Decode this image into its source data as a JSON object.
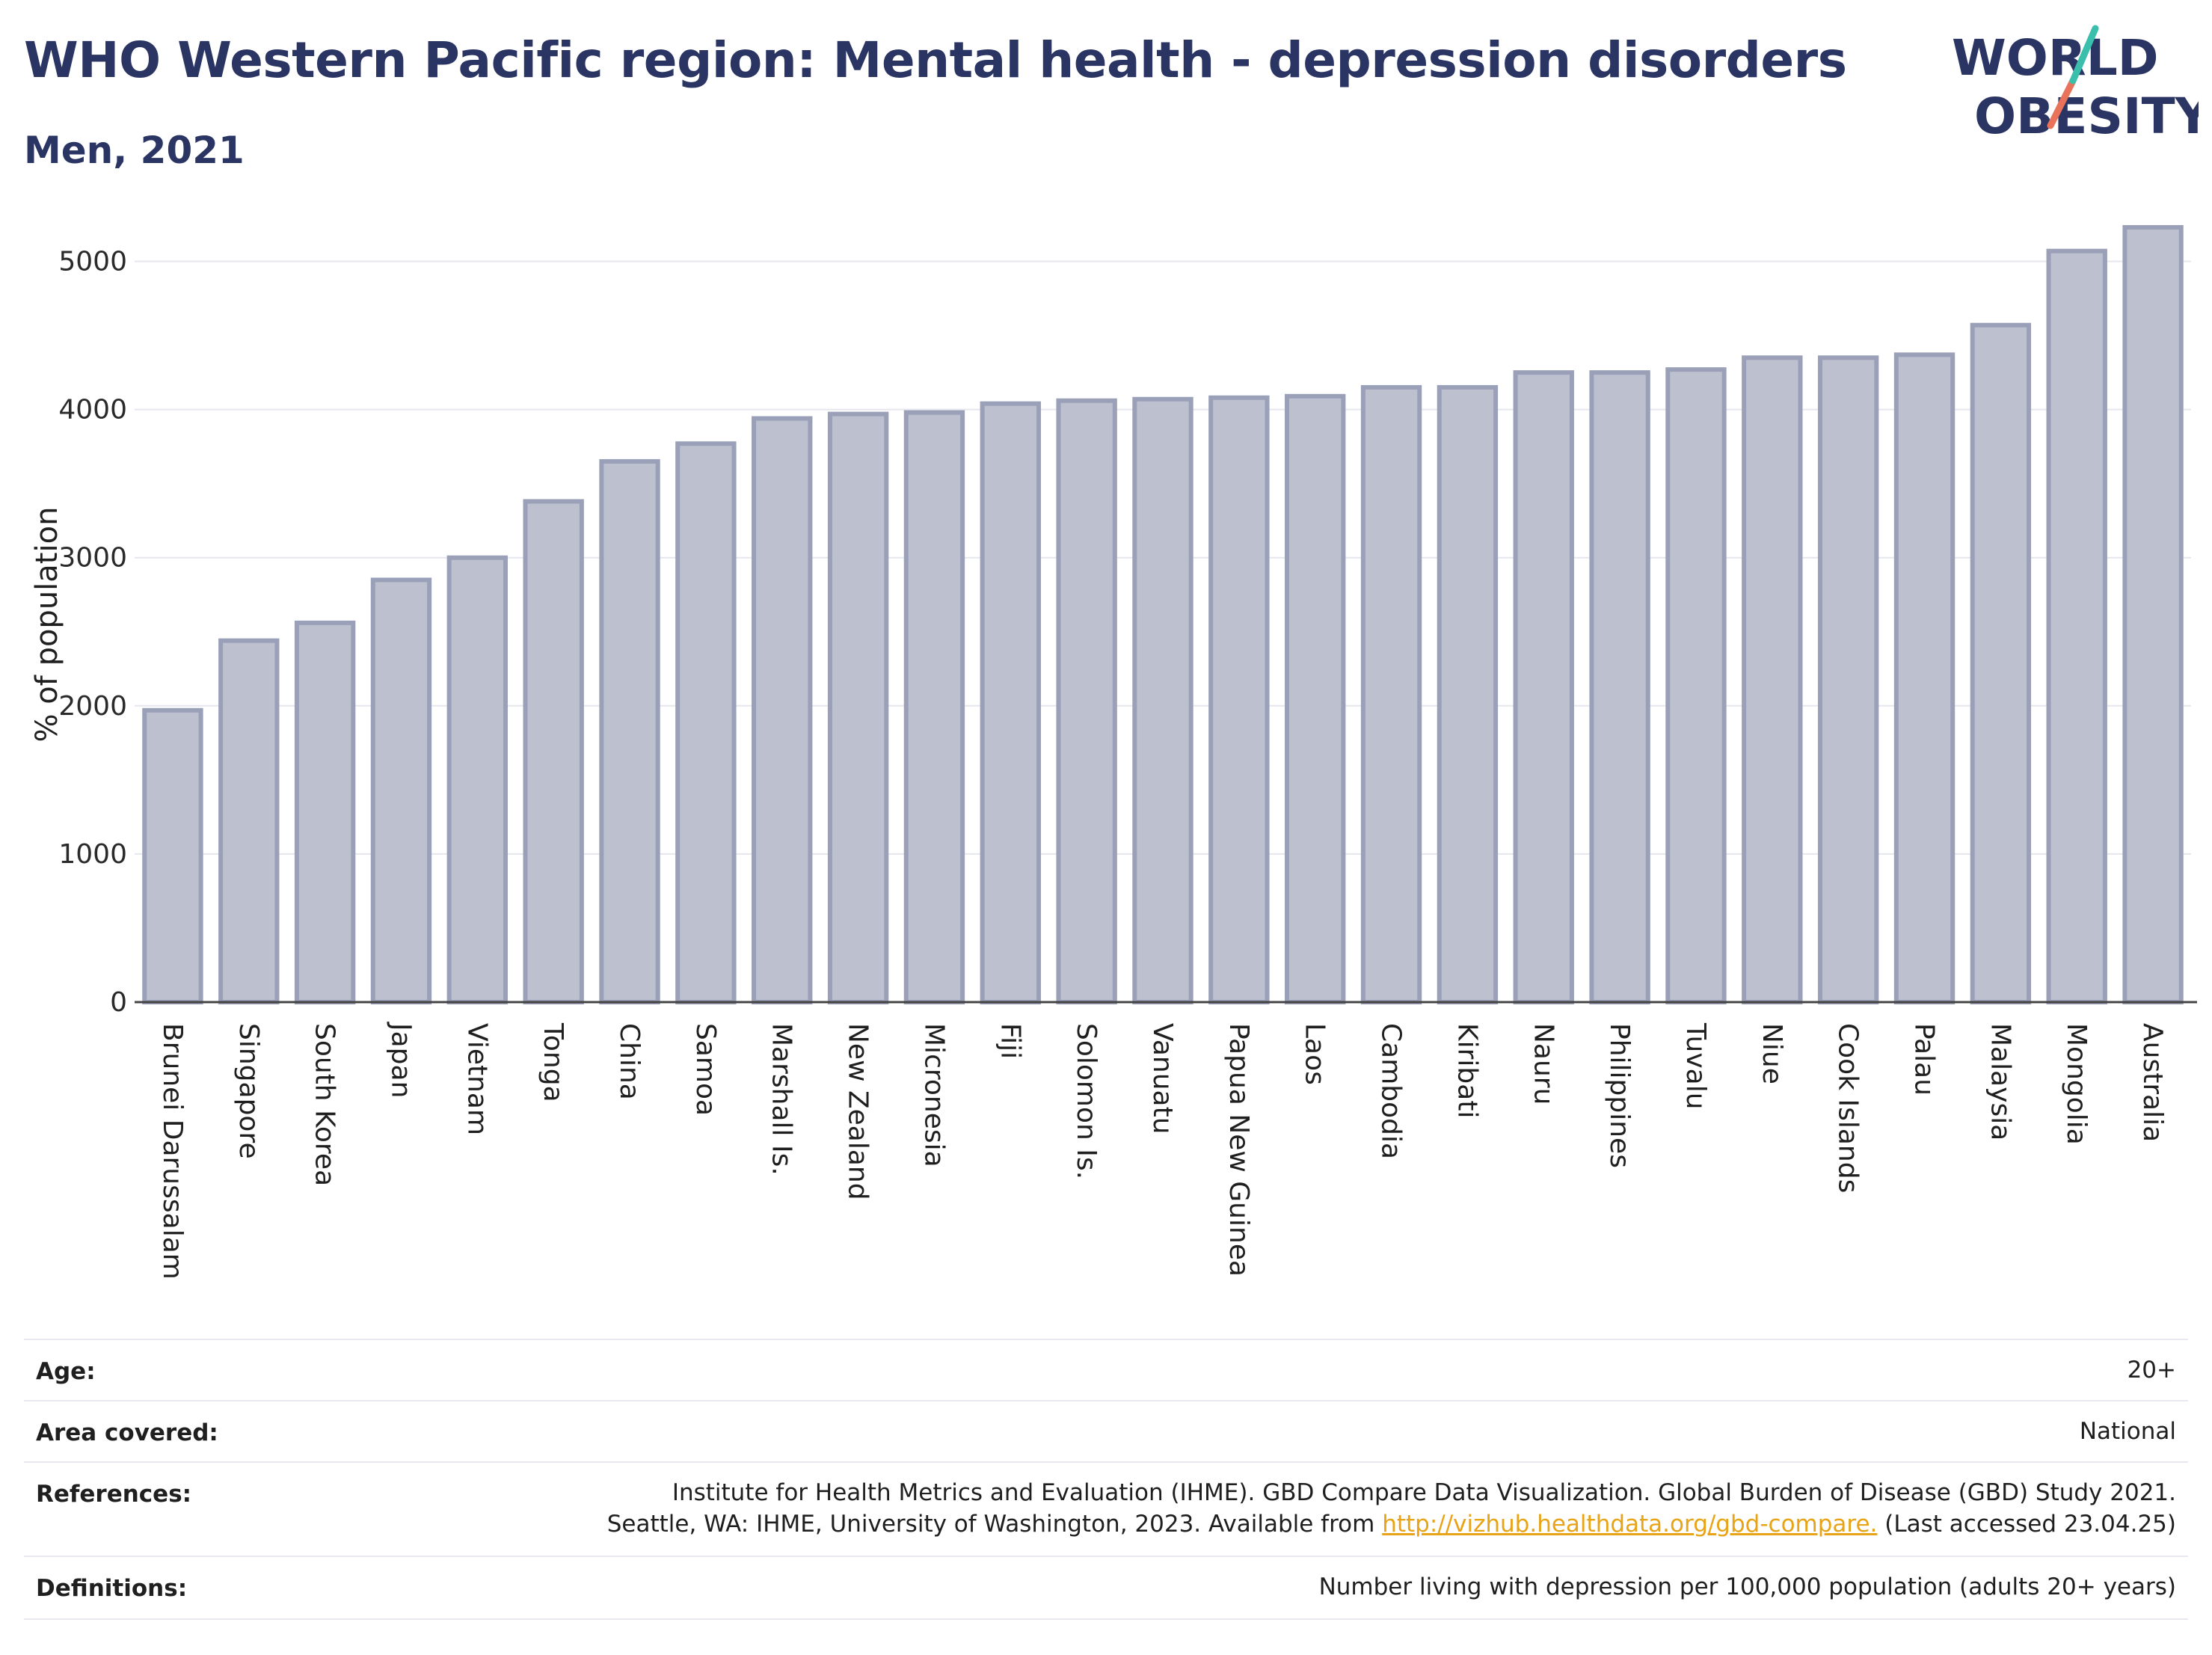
{
  "header": {
    "title": "WHO Western Pacific region: Mental health - depression disorders",
    "subtitle": "Men, 2021"
  },
  "logo": {
    "line1": "WORLD",
    "line2": "OBESITY",
    "text_color": "#2b3563",
    "accent_teal": "#3bbfad",
    "accent_coral": "#e8735a"
  },
  "chart_data": {
    "type": "bar",
    "categories": [
      "Brunei Darussalam",
      "Singapore",
      "South Korea",
      "Japan",
      "Vietnam",
      "Tonga",
      "China",
      "Samoa",
      "Marshall Is.",
      "New Zealand",
      "Micronesia",
      "Fiji",
      "Solomon Is.",
      "Vanuatu",
      "Papua New Guinea",
      "Laos",
      "Cambodia",
      "Kiribati",
      "Nauru",
      "Philippines",
      "Tuvalu",
      "Niue",
      "Cook Islands",
      "Palau",
      "Malaysia",
      "Mongolia",
      "Australia"
    ],
    "values": [
      1970,
      2440,
      2560,
      2850,
      3000,
      3380,
      3650,
      3770,
      3940,
      3970,
      3980,
      4040,
      4060,
      4070,
      4080,
      4090,
      4150,
      4150,
      4250,
      4250,
      4270,
      4350,
      4350,
      4370,
      4570,
      5070,
      5230
    ],
    "ylabel": "% of population",
    "xlabel": "",
    "ylim": [
      0,
      5250
    ],
    "yticks": [
      0,
      1000,
      2000,
      3000,
      4000,
      5000
    ],
    "grid": true,
    "bar_fill": "#bcc0cf",
    "bar_stroke": "#9aa0b8"
  },
  "meta": [
    {
      "label": "Age:",
      "value_lines": [
        "20+"
      ]
    },
    {
      "label": "Area covered:",
      "value_lines": [
        "National"
      ]
    },
    {
      "label": "References:",
      "value_lines": [
        "Institute for Health Metrics and Evaluation (IHME). GBD Compare Data Visualization. Global Burden of Disease (GBD) Study 2021."
      ],
      "value_line2_prefix": "Seattle, WA: IHME, University of Washington, 2023. Available from ",
      "value_line2_link": "http://vizhub.healthdata.org/gbd-compare.",
      "value_line2_suffix": " (Last accessed 23.04.25)"
    },
    {
      "label": "Definitions:",
      "value_lines": [
        "Number living with depression per 100,000 population (adults 20+ years)"
      ]
    }
  ]
}
